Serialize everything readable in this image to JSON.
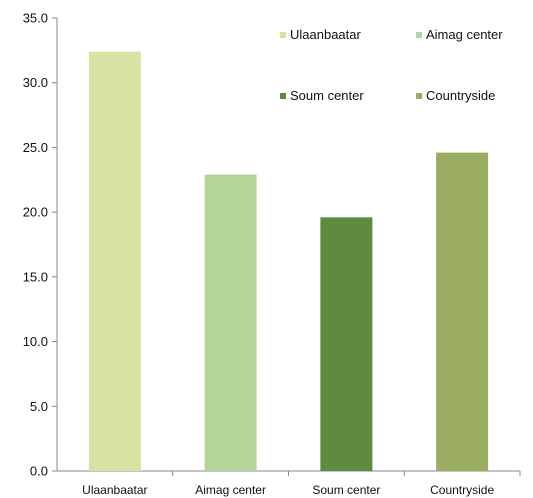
{
  "chart_data": {
    "type": "bar",
    "categories": [
      "Ulaanbaatar",
      "Aimag center",
      "Soum center",
      "Countryside"
    ],
    "values": [
      32.4,
      22.9,
      19.6,
      24.6
    ],
    "colors": [
      "#d6e3a3",
      "#b3d698",
      "#5e8b3e",
      "#9aad62"
    ],
    "ylim": [
      0,
      35
    ],
    "yticks": [
      "0.0",
      "5.0",
      "10.0",
      "15.0",
      "20.0",
      "25.0",
      "30.0",
      "35.0"
    ],
    "title": "",
    "xlabel": "",
    "ylabel": "",
    "grid": false,
    "legend": {
      "placement": "top-right",
      "entries": [
        "Ulaanbaatar",
        "Aimag center",
        "Soum center",
        "Countryside"
      ]
    }
  }
}
